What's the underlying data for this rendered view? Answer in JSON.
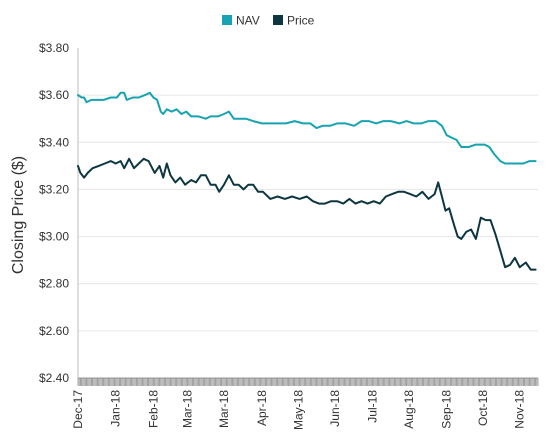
{
  "chart_data": {
    "type": "line",
    "ylabel": "Closing Price ($)",
    "xlabel": "",
    "title": "",
    "ylim": [
      2.4,
      3.8
    ],
    "y_ticks": [
      "$3.80",
      "$3.60",
      "$3.40",
      "$3.20",
      "$3.00",
      "$2.80",
      "$2.60",
      "$2.40"
    ],
    "y_tick_values": [
      3.8,
      3.6,
      3.4,
      3.2,
      3.0,
      2.8,
      2.6,
      2.4
    ],
    "x_ticks": [
      "Dec-17",
      "Jan-18",
      "Feb-18",
      "Mar-18",
      "Mar-18",
      "Apr-18",
      "May-18",
      "Jun-18",
      "Jul-18",
      "Aug-18",
      "Sep-18",
      "Oct-18",
      "Nov-18"
    ],
    "x_tick_dates": [
      "2017-12-01",
      "2018-01-01",
      "2018-02-01",
      "2018-03-01",
      "2018-03-31",
      "2018-05-01",
      "2018-05-31",
      "2018-06-30",
      "2018-07-31",
      "2018-08-30",
      "2018-09-30",
      "2018-10-30",
      "2018-11-29"
    ],
    "x_range": [
      "2017-12-01",
      "2018-12-14"
    ],
    "legend": {
      "position": "top-center"
    },
    "grid": {
      "horizontal": true,
      "vertical": false
    },
    "series": [
      {
        "name": "NAV",
        "color": "#17a3b1",
        "points": [
          [
            "2017-12-01",
            3.6
          ],
          [
            "2017-12-04",
            3.59
          ],
          [
            "2017-12-06",
            3.59
          ],
          [
            "2017-12-08",
            3.57
          ],
          [
            "2017-12-12",
            3.58
          ],
          [
            "2017-12-18",
            3.58
          ],
          [
            "2017-12-22",
            3.58
          ],
          [
            "2017-12-28",
            3.59
          ],
          [
            "2018-01-02",
            3.59
          ],
          [
            "2018-01-05",
            3.61
          ],
          [
            "2018-01-08",
            3.61
          ],
          [
            "2018-01-10",
            3.58
          ],
          [
            "2018-01-15",
            3.59
          ],
          [
            "2018-01-20",
            3.59
          ],
          [
            "2018-01-25",
            3.6
          ],
          [
            "2018-01-29",
            3.61
          ],
          [
            "2018-02-01",
            3.59
          ],
          [
            "2018-02-04",
            3.58
          ],
          [
            "2018-02-07",
            3.53
          ],
          [
            "2018-02-09",
            3.52
          ],
          [
            "2018-02-12",
            3.54
          ],
          [
            "2018-02-16",
            3.53
          ],
          [
            "2018-02-20",
            3.54
          ],
          [
            "2018-02-24",
            3.52
          ],
          [
            "2018-02-28",
            3.53
          ],
          [
            "2018-03-04",
            3.51
          ],
          [
            "2018-03-10",
            3.51
          ],
          [
            "2018-03-16",
            3.5
          ],
          [
            "2018-03-20",
            3.51
          ],
          [
            "2018-03-26",
            3.51
          ],
          [
            "2018-03-31",
            3.52
          ],
          [
            "2018-04-04",
            3.53
          ],
          [
            "2018-04-08",
            3.5
          ],
          [
            "2018-04-12",
            3.5
          ],
          [
            "2018-04-18",
            3.5
          ],
          [
            "2018-04-24",
            3.49
          ],
          [
            "2018-05-01",
            3.48
          ],
          [
            "2018-05-07",
            3.48
          ],
          [
            "2018-05-14",
            3.48
          ],
          [
            "2018-05-21",
            3.48
          ],
          [
            "2018-05-28",
            3.49
          ],
          [
            "2018-06-04",
            3.48
          ],
          [
            "2018-06-10",
            3.48
          ],
          [
            "2018-06-15",
            3.46
          ],
          [
            "2018-06-20",
            3.47
          ],
          [
            "2018-06-26",
            3.47
          ],
          [
            "2018-07-02",
            3.48
          ],
          [
            "2018-07-09",
            3.48
          ],
          [
            "2018-07-16",
            3.47
          ],
          [
            "2018-07-22",
            3.49
          ],
          [
            "2018-07-28",
            3.49
          ],
          [
            "2018-08-03",
            3.48
          ],
          [
            "2018-08-09",
            3.49
          ],
          [
            "2018-08-15",
            3.49
          ],
          [
            "2018-08-22",
            3.48
          ],
          [
            "2018-08-28",
            3.49
          ],
          [
            "2018-09-03",
            3.48
          ],
          [
            "2018-09-09",
            3.48
          ],
          [
            "2018-09-15",
            3.49
          ],
          [
            "2018-09-21",
            3.49
          ],
          [
            "2018-09-26",
            3.47
          ],
          [
            "2018-09-30",
            3.43
          ],
          [
            "2018-10-04",
            3.42
          ],
          [
            "2018-10-08",
            3.41
          ],
          [
            "2018-10-12",
            3.38
          ],
          [
            "2018-10-18",
            3.38
          ],
          [
            "2018-10-24",
            3.39
          ],
          [
            "2018-10-28",
            3.39
          ],
          [
            "2018-10-31",
            3.39
          ],
          [
            "2018-11-04",
            3.38
          ],
          [
            "2018-11-08",
            3.35
          ],
          [
            "2018-11-13",
            3.32
          ],
          [
            "2018-11-17",
            3.31
          ],
          [
            "2018-11-22",
            3.31
          ],
          [
            "2018-11-27",
            3.31
          ],
          [
            "2018-12-02",
            3.31
          ],
          [
            "2018-12-07",
            3.32
          ],
          [
            "2018-12-12",
            3.32
          ]
        ]
      },
      {
        "name": "Price",
        "color": "#0d3640",
        "points": [
          [
            "2017-12-01",
            3.3
          ],
          [
            "2017-12-03",
            3.27
          ],
          [
            "2017-12-06",
            3.25
          ],
          [
            "2017-12-09",
            3.27
          ],
          [
            "2017-12-13",
            3.29
          ],
          [
            "2017-12-18",
            3.3
          ],
          [
            "2017-12-23",
            3.31
          ],
          [
            "2017-12-28",
            3.32
          ],
          [
            "2018-01-01",
            3.31
          ],
          [
            "2018-01-05",
            3.32
          ],
          [
            "2018-01-08",
            3.29
          ],
          [
            "2018-01-12",
            3.33
          ],
          [
            "2018-01-16",
            3.29
          ],
          [
            "2018-01-20",
            3.31
          ],
          [
            "2018-01-24",
            3.33
          ],
          [
            "2018-01-28",
            3.32
          ],
          [
            "2018-02-02",
            3.27
          ],
          [
            "2018-02-06",
            3.3
          ],
          [
            "2018-02-09",
            3.25
          ],
          [
            "2018-02-12",
            3.31
          ],
          [
            "2018-02-15",
            3.26
          ],
          [
            "2018-02-19",
            3.23
          ],
          [
            "2018-02-23",
            3.25
          ],
          [
            "2018-02-27",
            3.22
          ],
          [
            "2018-03-04",
            3.24
          ],
          [
            "2018-03-08",
            3.23
          ],
          [
            "2018-03-12",
            3.26
          ],
          [
            "2018-03-16",
            3.26
          ],
          [
            "2018-03-20",
            3.22
          ],
          [
            "2018-03-24",
            3.22
          ],
          [
            "2018-03-27",
            3.19
          ],
          [
            "2018-03-31",
            3.22
          ],
          [
            "2018-04-04",
            3.26
          ],
          [
            "2018-04-08",
            3.22
          ],
          [
            "2018-04-12",
            3.22
          ],
          [
            "2018-04-16",
            3.2
          ],
          [
            "2018-04-20",
            3.22
          ],
          [
            "2018-04-24",
            3.22
          ],
          [
            "2018-04-28",
            3.19
          ],
          [
            "2018-05-02",
            3.19
          ],
          [
            "2018-05-08",
            3.16
          ],
          [
            "2018-05-14",
            3.17
          ],
          [
            "2018-05-20",
            3.16
          ],
          [
            "2018-05-26",
            3.17
          ],
          [
            "2018-06-01",
            3.16
          ],
          [
            "2018-06-07",
            3.17
          ],
          [
            "2018-06-12",
            3.15
          ],
          [
            "2018-06-17",
            3.14
          ],
          [
            "2018-06-22",
            3.14
          ],
          [
            "2018-06-27",
            3.15
          ],
          [
            "2018-07-02",
            3.15
          ],
          [
            "2018-07-07",
            3.14
          ],
          [
            "2018-07-12",
            3.16
          ],
          [
            "2018-07-17",
            3.14
          ],
          [
            "2018-07-22",
            3.15
          ],
          [
            "2018-07-27",
            3.14
          ],
          [
            "2018-08-01",
            3.15
          ],
          [
            "2018-08-06",
            3.14
          ],
          [
            "2018-08-11",
            3.17
          ],
          [
            "2018-08-16",
            3.18
          ],
          [
            "2018-08-21",
            3.19
          ],
          [
            "2018-08-26",
            3.19
          ],
          [
            "2018-08-31",
            3.18
          ],
          [
            "2018-09-05",
            3.17
          ],
          [
            "2018-09-10",
            3.19
          ],
          [
            "2018-09-15",
            3.16
          ],
          [
            "2018-09-20",
            3.18
          ],
          [
            "2018-09-23",
            3.23
          ],
          [
            "2018-09-26",
            3.17
          ],
          [
            "2018-09-29",
            3.11
          ],
          [
            "2018-10-02",
            3.12
          ],
          [
            "2018-10-06",
            3.05
          ],
          [
            "2018-10-09",
            3.0
          ],
          [
            "2018-10-12",
            2.99
          ],
          [
            "2018-10-16",
            3.02
          ],
          [
            "2018-10-20",
            3.03
          ],
          [
            "2018-10-24",
            2.99
          ],
          [
            "2018-10-28",
            3.08
          ],
          [
            "2018-11-01",
            3.07
          ],
          [
            "2018-11-05",
            3.07
          ],
          [
            "2018-11-09",
            3.01
          ],
          [
            "2018-11-13",
            2.94
          ],
          [
            "2018-11-17",
            2.87
          ],
          [
            "2018-11-21",
            2.88
          ],
          [
            "2018-11-25",
            2.91
          ],
          [
            "2018-11-29",
            2.87
          ],
          [
            "2018-12-04",
            2.89
          ],
          [
            "2018-12-08",
            2.86
          ],
          [
            "2018-12-12",
            2.86
          ]
        ]
      }
    ]
  }
}
